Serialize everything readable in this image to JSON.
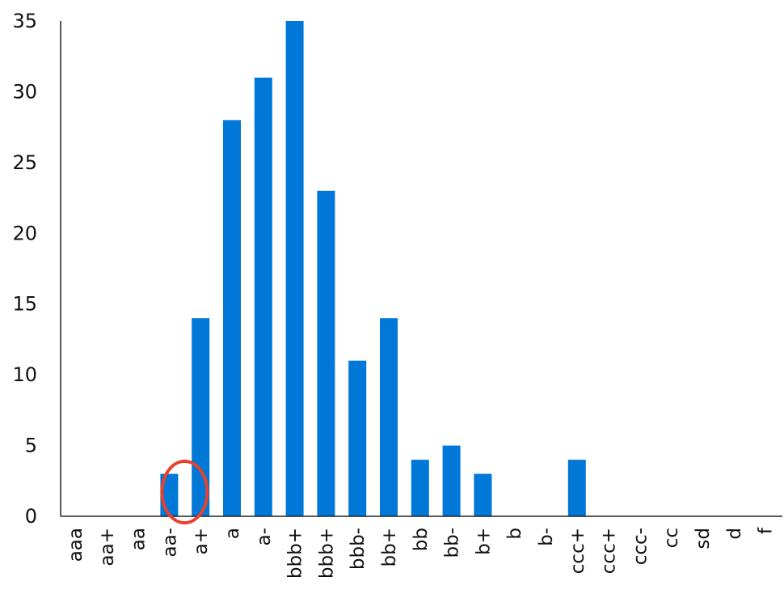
{
  "chart_data": {
    "type": "bar",
    "title": "",
    "xlabel": "",
    "ylabel": "",
    "categories": [
      "aaa",
      "aa+",
      "aa",
      "aa-",
      "a+",
      "a",
      "a-",
      "bbb+",
      "bbb+",
      "bbb-",
      "bb+",
      "bb",
      "bb-",
      "b+",
      "b",
      "b-",
      "ccc+",
      "ccc+",
      "ccc-",
      "cc",
      "sd",
      "d",
      "f"
    ],
    "values": [
      0,
      0,
      0,
      3,
      14,
      28,
      31,
      35,
      23,
      11,
      14,
      4,
      5,
      3,
      0,
      0,
      4,
      0,
      0,
      0,
      0,
      0,
      0
    ],
    "ylim": [
      0,
      35
    ],
    "yticks": [
      0,
      5,
      10,
      15,
      20,
      25,
      30,
      35
    ],
    "grid": false,
    "legend": "none",
    "bar_color": "#0078d7",
    "highlight": {
      "category": "aa-",
      "shape": "ellipse",
      "color": "#e8412c"
    }
  }
}
